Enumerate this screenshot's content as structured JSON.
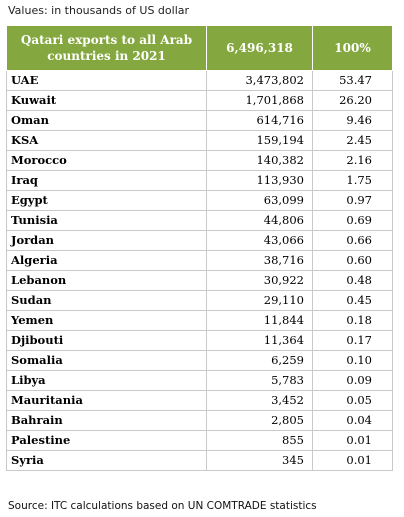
{
  "note": "Values: in thousands of US dollar",
  "table": {
    "header": {
      "label": "Qatari exports to all Arab countries in 2021",
      "total": "6,496,318",
      "percent": "100%"
    },
    "rows": [
      {
        "country": "UAE",
        "value": "3,473,802",
        "percent": "53.47"
      },
      {
        "country": "Kuwait",
        "value": "1,701,868",
        "percent": "26.20"
      },
      {
        "country": "Oman",
        "value": "614,716",
        "percent": "9.46"
      },
      {
        "country": "KSA",
        "value": "159,194",
        "percent": "2.45"
      },
      {
        "country": "Morocco",
        "value": "140,382",
        "percent": "2.16"
      },
      {
        "country": "Iraq",
        "value": "113,930",
        "percent": "1.75"
      },
      {
        "country": "Egypt",
        "value": "63,099",
        "percent": "0.97"
      },
      {
        "country": "Tunisia",
        "value": "44,806",
        "percent": "0.69"
      },
      {
        "country": "Jordan",
        "value": "43,066",
        "percent": "0.66"
      },
      {
        "country": "Algeria",
        "value": "38,716",
        "percent": "0.60"
      },
      {
        "country": "Lebanon",
        "value": "30,922",
        "percent": "0.48"
      },
      {
        "country": "Sudan",
        "value": "29,110",
        "percent": "0.45"
      },
      {
        "country": "Yemen",
        "value": "11,844",
        "percent": "0.18"
      },
      {
        "country": "Djibouti",
        "value": "11,364",
        "percent": "0.17"
      },
      {
        "country": "Somalia",
        "value": "6,259",
        "percent": "0.10"
      },
      {
        "country": "Libya",
        "value": "5,783",
        "percent": "0.09"
      },
      {
        "country": "Mauritania",
        "value": "3,452",
        "percent": "0.05"
      },
      {
        "country": "Bahrain",
        "value": "2,805",
        "percent": "0.04"
      },
      {
        "country": "Palestine",
        "value": "855",
        "percent": "0.01"
      },
      {
        "country": "Syria",
        "value": "345",
        "percent": "0.01"
      }
    ]
  },
  "source": "Source: ITC calculations based on UN COMTRADE statistics",
  "colors": {
    "header_bg": "#84a83f",
    "header_text": "#ffffff",
    "grid": "#c9c9c9"
  }
}
